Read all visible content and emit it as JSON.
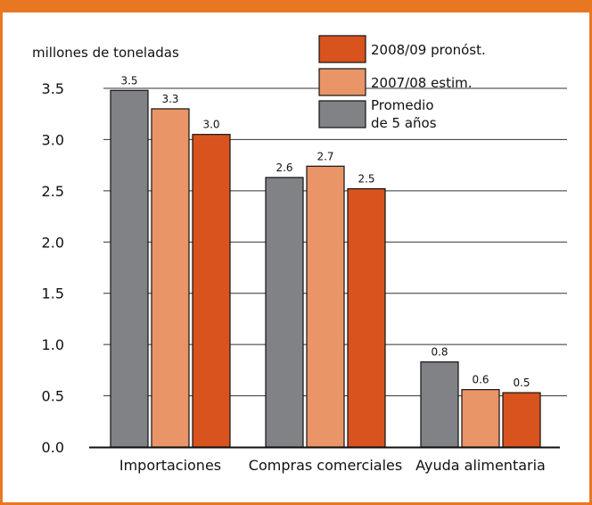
{
  "chart_data": {
    "type": "bar",
    "title": "",
    "xlabel": "",
    "ylabel": "millones de toneladas",
    "ylim": [
      0,
      3.5
    ],
    "yticks": [
      "0.0",
      "0.5",
      "1.0",
      "1.5",
      "2.0",
      "2.5",
      "3.0",
      "3.5"
    ],
    "categories": [
      "Importaciones",
      "Compras comerciales",
      "Ayuda alimentaria"
    ],
    "series": [
      {
        "name": "Promedio de 5 años",
        "legend_lines": [
          "Promedio",
          "de 5 años"
        ],
        "color": "#808285",
        "values": [
          3.48,
          2.63,
          0.83
        ],
        "labels": [
          "3.5",
          "2.6",
          "0.8"
        ]
      },
      {
        "name": "2007/08 estim.",
        "legend_lines": [
          "2007/08 estim."
        ],
        "color": "#ea9568",
        "values": [
          3.3,
          2.74,
          0.56
        ],
        "labels": [
          "3.3",
          "2.7",
          "0.6"
        ]
      },
      {
        "name": "2008/09 pronóst.",
        "legend_lines": [
          "2008/09 pronóst."
        ],
        "color": "#d9531e",
        "values": [
          3.05,
          2.52,
          0.53
        ],
        "labels": [
          "3.0",
          "2.5",
          "0.5"
        ]
      }
    ],
    "legend_order": [
      2,
      1,
      0
    ],
    "legend_position": "top-right",
    "grid": true
  },
  "colors": {
    "frame": "#e87722",
    "grid": "#333333"
  }
}
